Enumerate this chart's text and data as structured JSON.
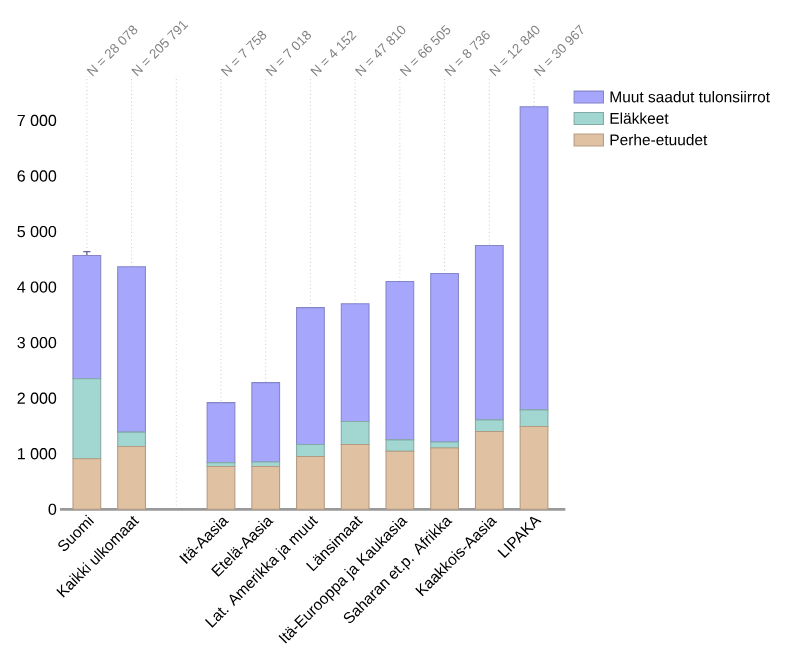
{
  "chart_data": {
    "type": "bar",
    "stacked": true,
    "categories": [
      "Suomi",
      "Kaikki ulkomaat",
      null,
      "Itä-Aasia",
      "Etelä-Aasia",
      "Lat. Amerikka ja muut",
      "Länsimaat",
      "Itä-Eurooppa ja Kaukasia",
      "Saharan et.p. Afrikka",
      "Kaakkois-Aasia",
      "LIPAKA"
    ],
    "series": [
      {
        "name": "Perhe-etuudet",
        "color": "#e0c2a2",
        "values": [
          910,
          1130,
          null,
          770,
          770,
          950,
          1165,
          1045,
          1105,
          1400,
          1490
        ]
      },
      {
        "name": "Eläkkeet",
        "color": "#a2d6d0",
        "values": [
          1440,
          260,
          null,
          70,
          80,
          215,
          415,
          205,
          105,
          210,
          300
        ]
      },
      {
        "name": "Muut saadut tulonsiirrot",
        "color": "#a6a6fc",
        "values": [
          2220,
          2975,
          null,
          1080,
          1430,
          2465,
          2120,
          2850,
          3035,
          3140,
          5455
        ],
        "errors": [
          70,
          null,
          null,
          null,
          null,
          null,
          null,
          null,
          null,
          null,
          null
        ]
      }
    ],
    "ylim": [
      0,
      7800
    ],
    "yticks": [
      0,
      {
        "value": 1000,
        "label": "1 000"
      },
      {
        "value": 2000,
        "label": "2 000"
      },
      {
        "value": 3000,
        "label": "3 000"
      },
      {
        "value": 4000,
        "label": "4 000"
      },
      {
        "value": 5000,
        "label": "5 000"
      },
      {
        "value": 6000,
        "label": "6 000"
      },
      {
        "value": 7000,
        "label": "7 000"
      }
    ],
    "annotations": [
      "N = 28 078",
      "N = 205 791",
      "N = 7 758",
      "N = 7 018",
      "N = 4 152",
      "N = 47 810",
      "N = 66 505",
      "N = 8 736",
      "N = 12 840",
      "N = 30 967"
    ],
    "grid": true,
    "legend": "top right"
  }
}
